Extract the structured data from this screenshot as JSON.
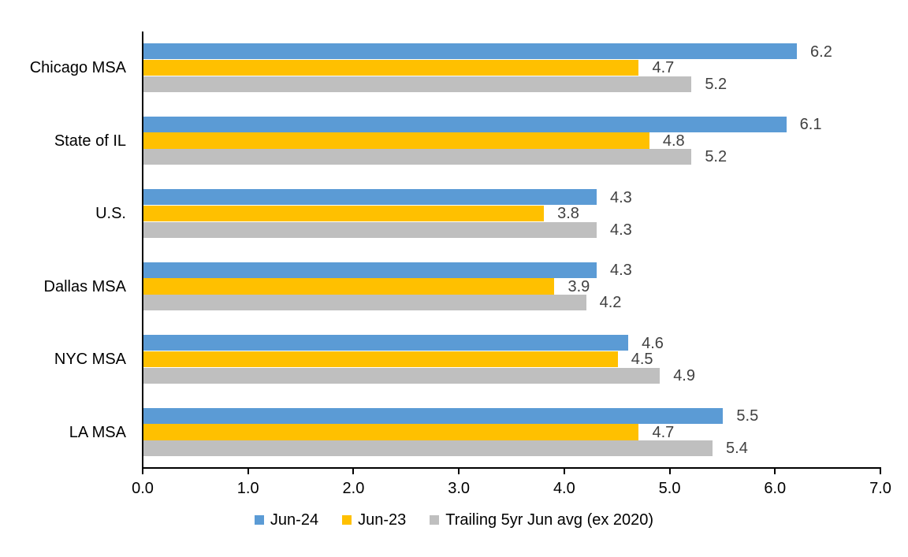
{
  "chart_data": {
    "type": "bar",
    "orientation": "horizontal",
    "title": "",
    "xlabel": "",
    "ylabel": "",
    "xlim": [
      0,
      7
    ],
    "x_ticks": [
      "0.0",
      "1.0",
      "2.0",
      "3.0",
      "4.0",
      "5.0",
      "6.0",
      "7.0"
    ],
    "grid": false,
    "data_labels": true,
    "legend_position": "bottom",
    "categories": [
      "Chicago MSA",
      "State of IL",
      "U.S.",
      "Dallas MSA",
      "NYC MSA",
      "LA MSA"
    ],
    "series": [
      {
        "name": "Jun-24",
        "color": "#5B9BD5",
        "values": [
          6.2,
          6.1,
          4.3,
          4.3,
          4.6,
          5.5
        ]
      },
      {
        "name": "Jun-23",
        "color": "#FFC000",
        "values": [
          4.7,
          4.8,
          3.8,
          3.9,
          4.5,
          4.7
        ]
      },
      {
        "name": "Trailing 5yr Jun avg (ex 2020)",
        "color": "#BFBFBF",
        "values": [
          5.2,
          5.2,
          4.3,
          4.2,
          4.9,
          5.4
        ]
      }
    ]
  },
  "colors": {
    "background": "#FFFFFF",
    "axis": "#000000",
    "data_label": "#404040",
    "category_label": "#000000"
  }
}
